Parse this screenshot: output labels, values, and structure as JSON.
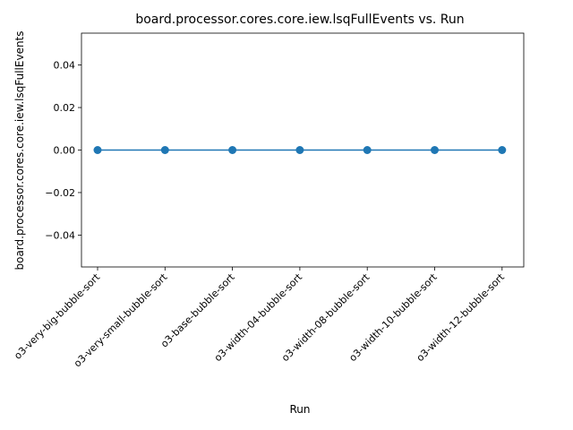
{
  "chart_data": {
    "type": "line",
    "title": "board.processor.cores.core.iew.lsqFullEvents vs. Run",
    "xlabel": "Run",
    "ylabel": "board.processor.cores.core.iew.lsqFullEvents",
    "categories": [
      "o3-very-big-bubble-sort",
      "o3-very-small-bubble-sort",
      "o3-base-bubble-sort",
      "o3-width-04-bubble-sort",
      "o3-width-08-bubble-sort",
      "o3-width-10-bubble-sort",
      "o3-width-12-bubble-sort"
    ],
    "values": [
      0,
      0,
      0,
      0,
      0,
      0,
      0
    ],
    "ylim": [
      -0.055,
      0.055
    ],
    "yticks": [
      -0.04,
      -0.02,
      0.0,
      0.02,
      0.04
    ],
    "ytick_labels": [
      "−0.04",
      "−0.02",
      "0.00",
      "0.02",
      "0.04"
    ],
    "grid": false,
    "line_color": "#1f77b4",
    "marker": "circle"
  }
}
